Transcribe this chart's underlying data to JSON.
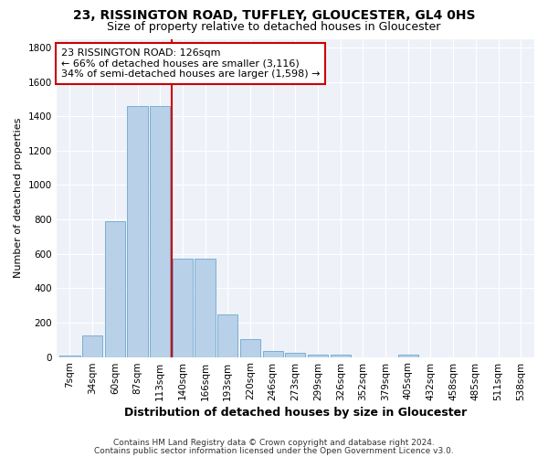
{
  "title": "23, RISSINGTON ROAD, TUFFLEY, GLOUCESTER, GL4 0HS",
  "subtitle": "Size of property relative to detached houses in Gloucester",
  "xlabel": "Distribution of detached houses by size in Gloucester",
  "ylabel": "Number of detached properties",
  "categories": [
    "7sqm",
    "34sqm",
    "60sqm",
    "87sqm",
    "113sqm",
    "140sqm",
    "166sqm",
    "193sqm",
    "220sqm",
    "246sqm",
    "273sqm",
    "299sqm",
    "326sqm",
    "352sqm",
    "379sqm",
    "405sqm",
    "432sqm",
    "458sqm",
    "485sqm",
    "511sqm",
    "538sqm"
  ],
  "values": [
    10,
    125,
    790,
    1460,
    1460,
    570,
    570,
    245,
    105,
    35,
    25,
    15,
    15,
    0,
    0,
    15,
    0,
    0,
    0,
    0,
    0
  ],
  "bar_color": "#b8d0e8",
  "bar_edgecolor": "#7aafd4",
  "vline_color": "#cc0000",
  "vline_pos": 4.5,
  "annotation_line1": "23 RISSINGTON ROAD: 126sqm",
  "annotation_line2": "← 66% of detached houses are smaller (3,116)",
  "annotation_line3": "34% of semi-detached houses are larger (1,598) →",
  "annotation_box_edgecolor": "#cc0000",
  "ylim": [
    0,
    1850
  ],
  "yticks": [
    0,
    200,
    400,
    600,
    800,
    1000,
    1200,
    1400,
    1600,
    1800
  ],
  "footnote1": "Contains HM Land Registry data © Crown copyright and database right 2024.",
  "footnote2": "Contains public sector information licensed under the Open Government Licence v3.0.",
  "bg_color": "#eef2f8",
  "title_fontsize": 10,
  "subtitle_fontsize": 9,
  "xlabel_fontsize": 9,
  "ylabel_fontsize": 8,
  "tick_fontsize": 7.5,
  "annot_fontsize": 8,
  "footnote_fontsize": 6.5
}
